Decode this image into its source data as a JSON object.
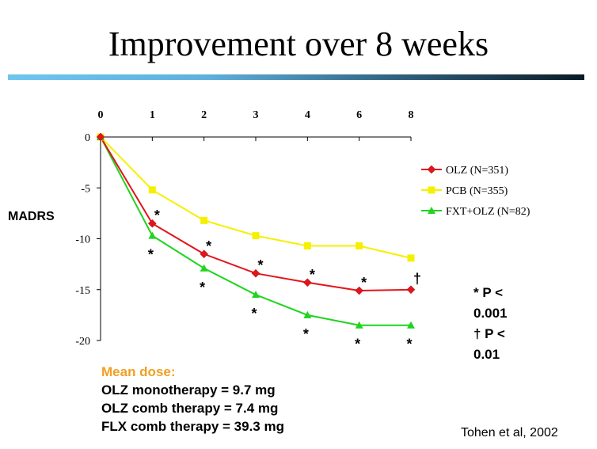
{
  "title": "Improvement over 8 weeks",
  "chart_data": {
    "type": "line",
    "x": [
      0,
      1,
      2,
      3,
      4,
      6,
      8
    ],
    "x_tick_labels": [
      "0",
      "1",
      "2",
      "3",
      "4",
      "6",
      "8"
    ],
    "ylabel": "MADRS",
    "ylim": [
      -20,
      0
    ],
    "y_ticks": [
      0,
      -5,
      -10,
      -15,
      -20
    ],
    "y_tick_labels": [
      "0",
      "-5",
      "-10",
      "-15",
      "-20"
    ],
    "legend_position": "right",
    "series": [
      {
        "name": "OLZ (N=351)",
        "color": "#e3141b",
        "marker": "diamond",
        "values": [
          0,
          -8.5,
          -11.5,
          -13.4,
          -14.3,
          -15.1,
          -15.0
        ]
      },
      {
        "name": "PCB (N=355)",
        "color": "#f5f000",
        "marker": "square",
        "values": [
          0,
          -5.2,
          -8.2,
          -9.7,
          -10.7,
          -10.7,
          -11.9
        ]
      },
      {
        "name": "FXT+OLZ (N=82)",
        "color": "#1fd41f",
        "marker": "triangle",
        "values": [
          0,
          -9.7,
          -12.9,
          -15.5,
          -17.5,
          -18.5,
          -18.5
        ]
      }
    ],
    "annotations": [
      {
        "text": "*",
        "series": "OLZ (N=351)",
        "x": 1,
        "position": "above"
      },
      {
        "text": "*",
        "series": "OLZ (N=351)",
        "x": 2,
        "position": "above"
      },
      {
        "text": "*",
        "series": "OLZ (N=351)",
        "x": 3,
        "position": "above"
      },
      {
        "text": "*",
        "series": "OLZ (N=351)",
        "x": 4,
        "position": "above"
      },
      {
        "text": "*",
        "series": "OLZ (N=351)",
        "x": 6,
        "position": "above"
      },
      {
        "text": "†",
        "series": "OLZ (N=351)",
        "x": 8,
        "position": "above"
      },
      {
        "text": "*",
        "series": "FXT+OLZ (N=82)",
        "x": 1,
        "position": "below"
      },
      {
        "text": "*",
        "series": "FXT+OLZ (N=82)",
        "x": 2,
        "position": "below"
      },
      {
        "text": "*",
        "series": "FXT+OLZ (N=82)",
        "x": 3,
        "position": "below"
      },
      {
        "text": "*",
        "series": "FXT+OLZ (N=82)",
        "x": 4,
        "position": "below"
      },
      {
        "text": "*",
        "series": "FXT+OLZ (N=82)",
        "x": 6,
        "position": "below"
      },
      {
        "text": "*",
        "series": "FXT+OLZ (N=82)",
        "x": 8,
        "position": "below"
      }
    ]
  },
  "significance_notes": [
    "* P <",
    "0.001",
    "† P <",
    "0.01"
  ],
  "mean_dose": {
    "title": "Mean dose:",
    "lines": [
      "OLZ monotherapy = 9.7 mg",
      "OLZ comb therapy = 7.4 mg",
      "FLX comb therapy = 39.3 mg"
    ]
  },
  "citation": "Tohen et al, 2002",
  "colors": {
    "axis": "#000000",
    "title_rule_start": "#6ec6ee",
    "title_rule_end": "#0a1a26",
    "mean_dose_title": "#f0a020"
  }
}
